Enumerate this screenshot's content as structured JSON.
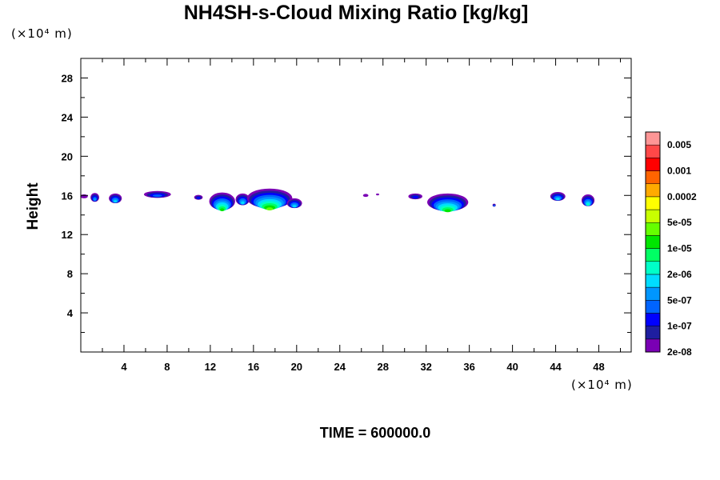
{
  "chart_data": {
    "type": "heatmap",
    "title": "NH4SH-s-Cloud Mixing Ratio [kg/kg]",
    "ylabel": "Height",
    "xlabel": "",
    "x_unit": "(×10⁴ m)",
    "y_unit": "(×10⁴ m)",
    "footer": "TIME = 600000.0",
    "xlim": [
      0,
      51
    ],
    "ylim": [
      0,
      30
    ],
    "x_ticks": [
      4,
      8,
      12,
      16,
      20,
      24,
      28,
      32,
      36,
      40,
      44,
      48
    ],
    "y_ticks": [
      4,
      8,
      12,
      16,
      20,
      24,
      28
    ],
    "colorbar": {
      "labels": [
        "0.005",
        "0.001",
        "0.0002",
        "5e-05",
        "1e-05",
        "2e-06",
        "5e-07",
        "1e-07",
        "2e-08"
      ],
      "colors": [
        "#7a00b4",
        "#1e1ea0",
        "#0000ff",
        "#0064ff",
        "#0096ff",
        "#00dcff",
        "#00ffc8",
        "#00ff64",
        "#00e600",
        "#66ff00",
        "#c8ff00",
        "#ffff00",
        "#ffaa00",
        "#ff6400",
        "#ff0000",
        "#ff4848",
        "#ff9696"
      ]
    },
    "clouds": [
      {
        "x": 0.3,
        "y": 15.9,
        "w": 0.7,
        "h": 0.4,
        "level": 0
      },
      {
        "x": 1.3,
        "y": 15.8,
        "w": 0.8,
        "h": 0.9,
        "level": 4
      },
      {
        "x": 3.2,
        "y": 15.7,
        "w": 1.2,
        "h": 1.0,
        "level": 5
      },
      {
        "x": 7.1,
        "y": 16.1,
        "w": 2.5,
        "h": 0.7,
        "level": 3
      },
      {
        "x": 10.9,
        "y": 15.8,
        "w": 0.8,
        "h": 0.5,
        "level": 2
      },
      {
        "x": 13.1,
        "y": 15.4,
        "w": 2.4,
        "h": 1.8,
        "level": 8
      },
      {
        "x": 15.0,
        "y": 15.6,
        "w": 1.3,
        "h": 1.2,
        "level": 5
      },
      {
        "x": 17.5,
        "y": 15.7,
        "w": 4.2,
        "h": 2.0,
        "level": 9
      },
      {
        "x": 19.8,
        "y": 15.2,
        "w": 1.4,
        "h": 1.0,
        "level": 5
      },
      {
        "x": 26.4,
        "y": 16.0,
        "w": 0.5,
        "h": 0.3,
        "level": 0
      },
      {
        "x": 27.5,
        "y": 16.1,
        "w": 0.3,
        "h": 0.2,
        "level": 0
      },
      {
        "x": 31.0,
        "y": 15.9,
        "w": 1.3,
        "h": 0.6,
        "level": 2
      },
      {
        "x": 34.0,
        "y": 15.3,
        "w": 3.8,
        "h": 1.8,
        "level": 8
      },
      {
        "x": 38.3,
        "y": 15.0,
        "w": 0.3,
        "h": 0.3,
        "level": 3
      },
      {
        "x": 44.2,
        "y": 15.9,
        "w": 1.4,
        "h": 0.9,
        "level": 5
      },
      {
        "x": 47.0,
        "y": 15.5,
        "w": 1.2,
        "h": 1.2,
        "level": 6
      }
    ]
  }
}
